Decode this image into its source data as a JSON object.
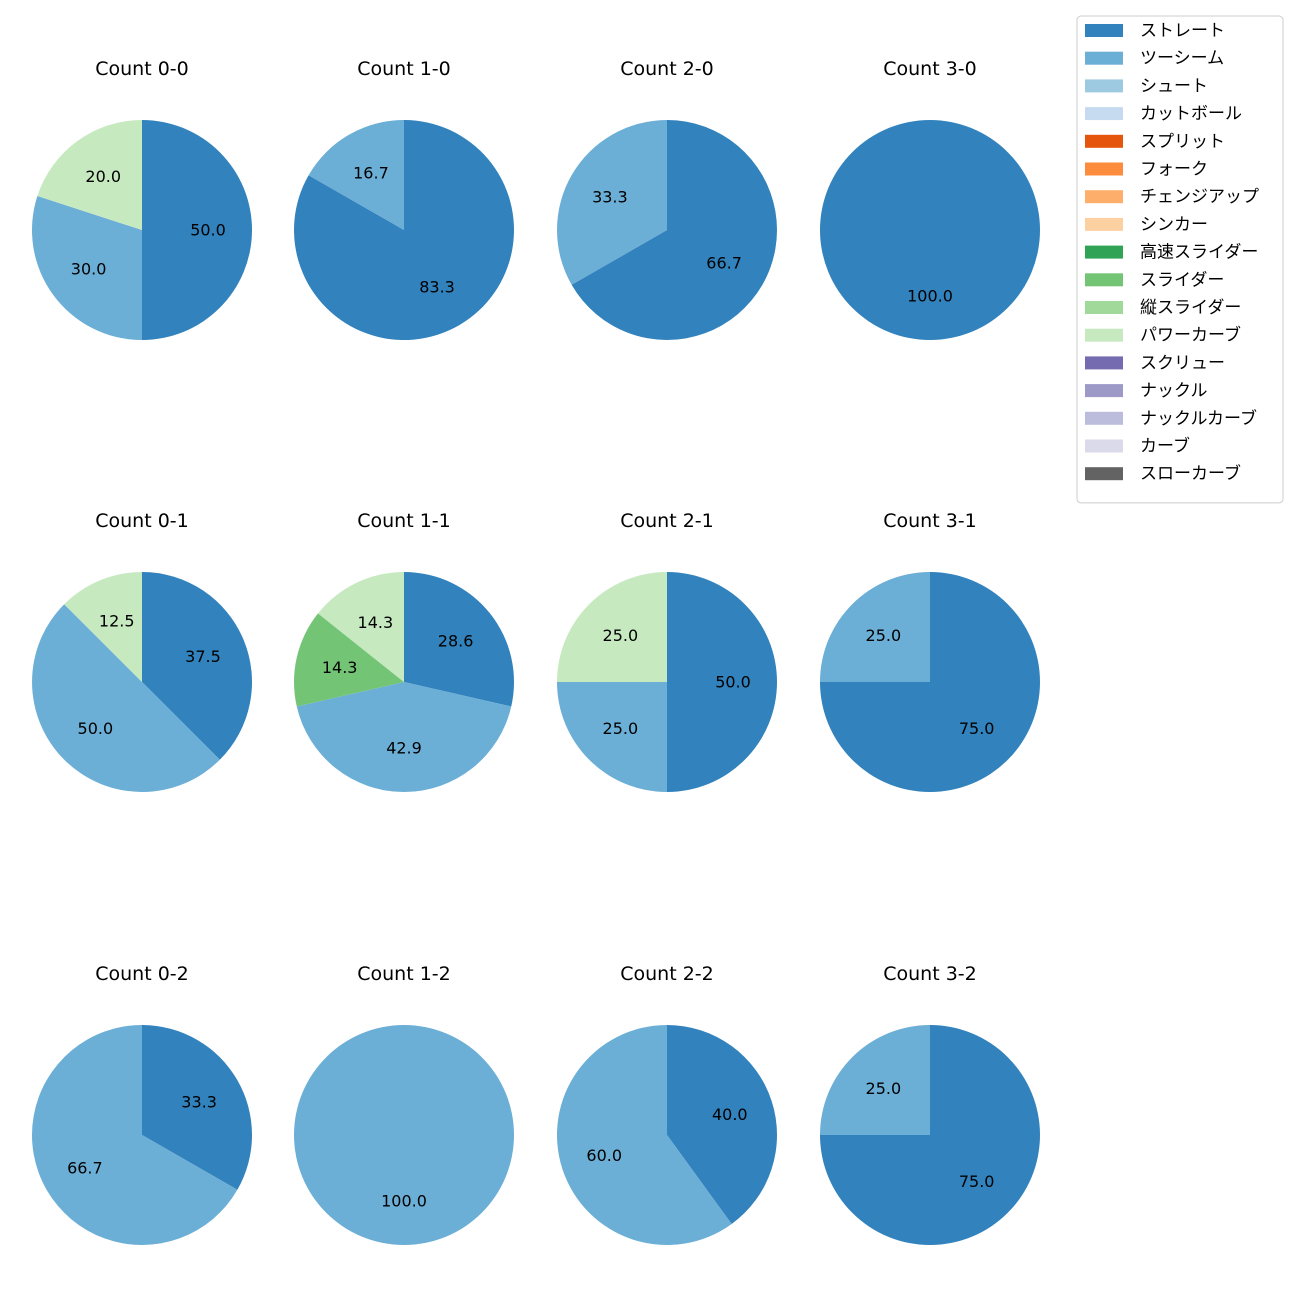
{
  "chart_data": {
    "type": "pie",
    "legend_placement": "top-right",
    "legend": [
      {
        "name": "ストレート",
        "color": "#3182bd"
      },
      {
        "name": "ツーシーム",
        "color": "#6baed6"
      },
      {
        "name": "シュート",
        "color": "#9ecae1"
      },
      {
        "name": "カットボール",
        "color": "#c6dbef"
      },
      {
        "name": "スプリット",
        "color": "#e6550d"
      },
      {
        "name": "フォーク",
        "color": "#fd8d3c"
      },
      {
        "name": "チェンジアップ",
        "color": "#fdae6b"
      },
      {
        "name": "シンカー",
        "color": "#fdd0a2"
      },
      {
        "name": "高速スライダー",
        "color": "#31a354"
      },
      {
        "name": "スライダー",
        "color": "#74c476"
      },
      {
        "name": "縦スライダー",
        "color": "#a1d99b"
      },
      {
        "name": "パワーカーブ",
        "color": "#c7e9c0"
      },
      {
        "name": "スクリュー",
        "color": "#756bb1"
      },
      {
        "name": "ナックル",
        "color": "#9e9ac8"
      },
      {
        "name": "ナックルカーブ",
        "color": "#bcbddc"
      },
      {
        "name": "カーブ",
        "color": "#dadaeb"
      },
      {
        "name": "スローカーブ",
        "color": "#636363"
      }
    ],
    "pies": [
      {
        "title": "Count 0-0",
        "slices": [
          {
            "pitch": "ストレート",
            "value": 50.0,
            "label": "50.0"
          },
          {
            "pitch": "ツーシーム",
            "value": 30.0,
            "label": "30.0"
          },
          {
            "pitch": "パワーカーブ",
            "value": 20.0,
            "label": "20.0"
          }
        ]
      },
      {
        "title": "Count 1-0",
        "slices": [
          {
            "pitch": "ストレート",
            "value": 83.3,
            "label": "83.3"
          },
          {
            "pitch": "ツーシーム",
            "value": 16.7,
            "label": "16.7"
          }
        ]
      },
      {
        "title": "Count 2-0",
        "slices": [
          {
            "pitch": "ストレート",
            "value": 66.7,
            "label": "66.7"
          },
          {
            "pitch": "ツーシーム",
            "value": 33.3,
            "label": "33.3"
          }
        ]
      },
      {
        "title": "Count 3-0",
        "slices": [
          {
            "pitch": "ストレート",
            "value": 100.0,
            "label": "100.0"
          }
        ]
      },
      {
        "title": "Count 0-1",
        "slices": [
          {
            "pitch": "ストレート",
            "value": 37.5,
            "label": "37.5"
          },
          {
            "pitch": "ツーシーム",
            "value": 50.0,
            "label": "50.0"
          },
          {
            "pitch": "パワーカーブ",
            "value": 12.5,
            "label": "12.5"
          }
        ]
      },
      {
        "title": "Count 1-1",
        "slices": [
          {
            "pitch": "ストレート",
            "value": 28.6,
            "label": "28.6"
          },
          {
            "pitch": "ツーシーム",
            "value": 42.9,
            "label": "42.9"
          },
          {
            "pitch": "スライダー",
            "value": 14.3,
            "label": "14.3"
          },
          {
            "pitch": "パワーカーブ",
            "value": 14.3,
            "label": "14.3"
          }
        ]
      },
      {
        "title": "Count 2-1",
        "slices": [
          {
            "pitch": "ストレート",
            "value": 50.0,
            "label": "50.0"
          },
          {
            "pitch": "ツーシーム",
            "value": 25.0,
            "label": "25.0"
          },
          {
            "pitch": "パワーカーブ",
            "value": 25.0,
            "label": "25.0"
          }
        ]
      },
      {
        "title": "Count 3-1",
        "slices": [
          {
            "pitch": "ストレート",
            "value": 75.0,
            "label": "75.0"
          },
          {
            "pitch": "ツーシーム",
            "value": 25.0,
            "label": "25.0"
          }
        ]
      },
      {
        "title": "Count 0-2",
        "slices": [
          {
            "pitch": "ストレート",
            "value": 33.3,
            "label": "33.3"
          },
          {
            "pitch": "ツーシーム",
            "value": 66.7,
            "label": "66.7"
          }
        ]
      },
      {
        "title": "Count 1-2",
        "slices": [
          {
            "pitch": "ツーシーム",
            "value": 100.0,
            "label": "100.0"
          }
        ]
      },
      {
        "title": "Count 2-2",
        "slices": [
          {
            "pitch": "ストレート",
            "value": 40.0,
            "label": "40.0"
          },
          {
            "pitch": "ツーシーム",
            "value": 60.0,
            "label": "60.0"
          }
        ]
      },
      {
        "title": "Count 3-2",
        "slices": [
          {
            "pitch": "ストレート",
            "value": 75.0,
            "label": "75.0"
          },
          {
            "pitch": "ツーシーム",
            "value": 25.0,
            "label": "25.0"
          }
        ]
      }
    ]
  }
}
